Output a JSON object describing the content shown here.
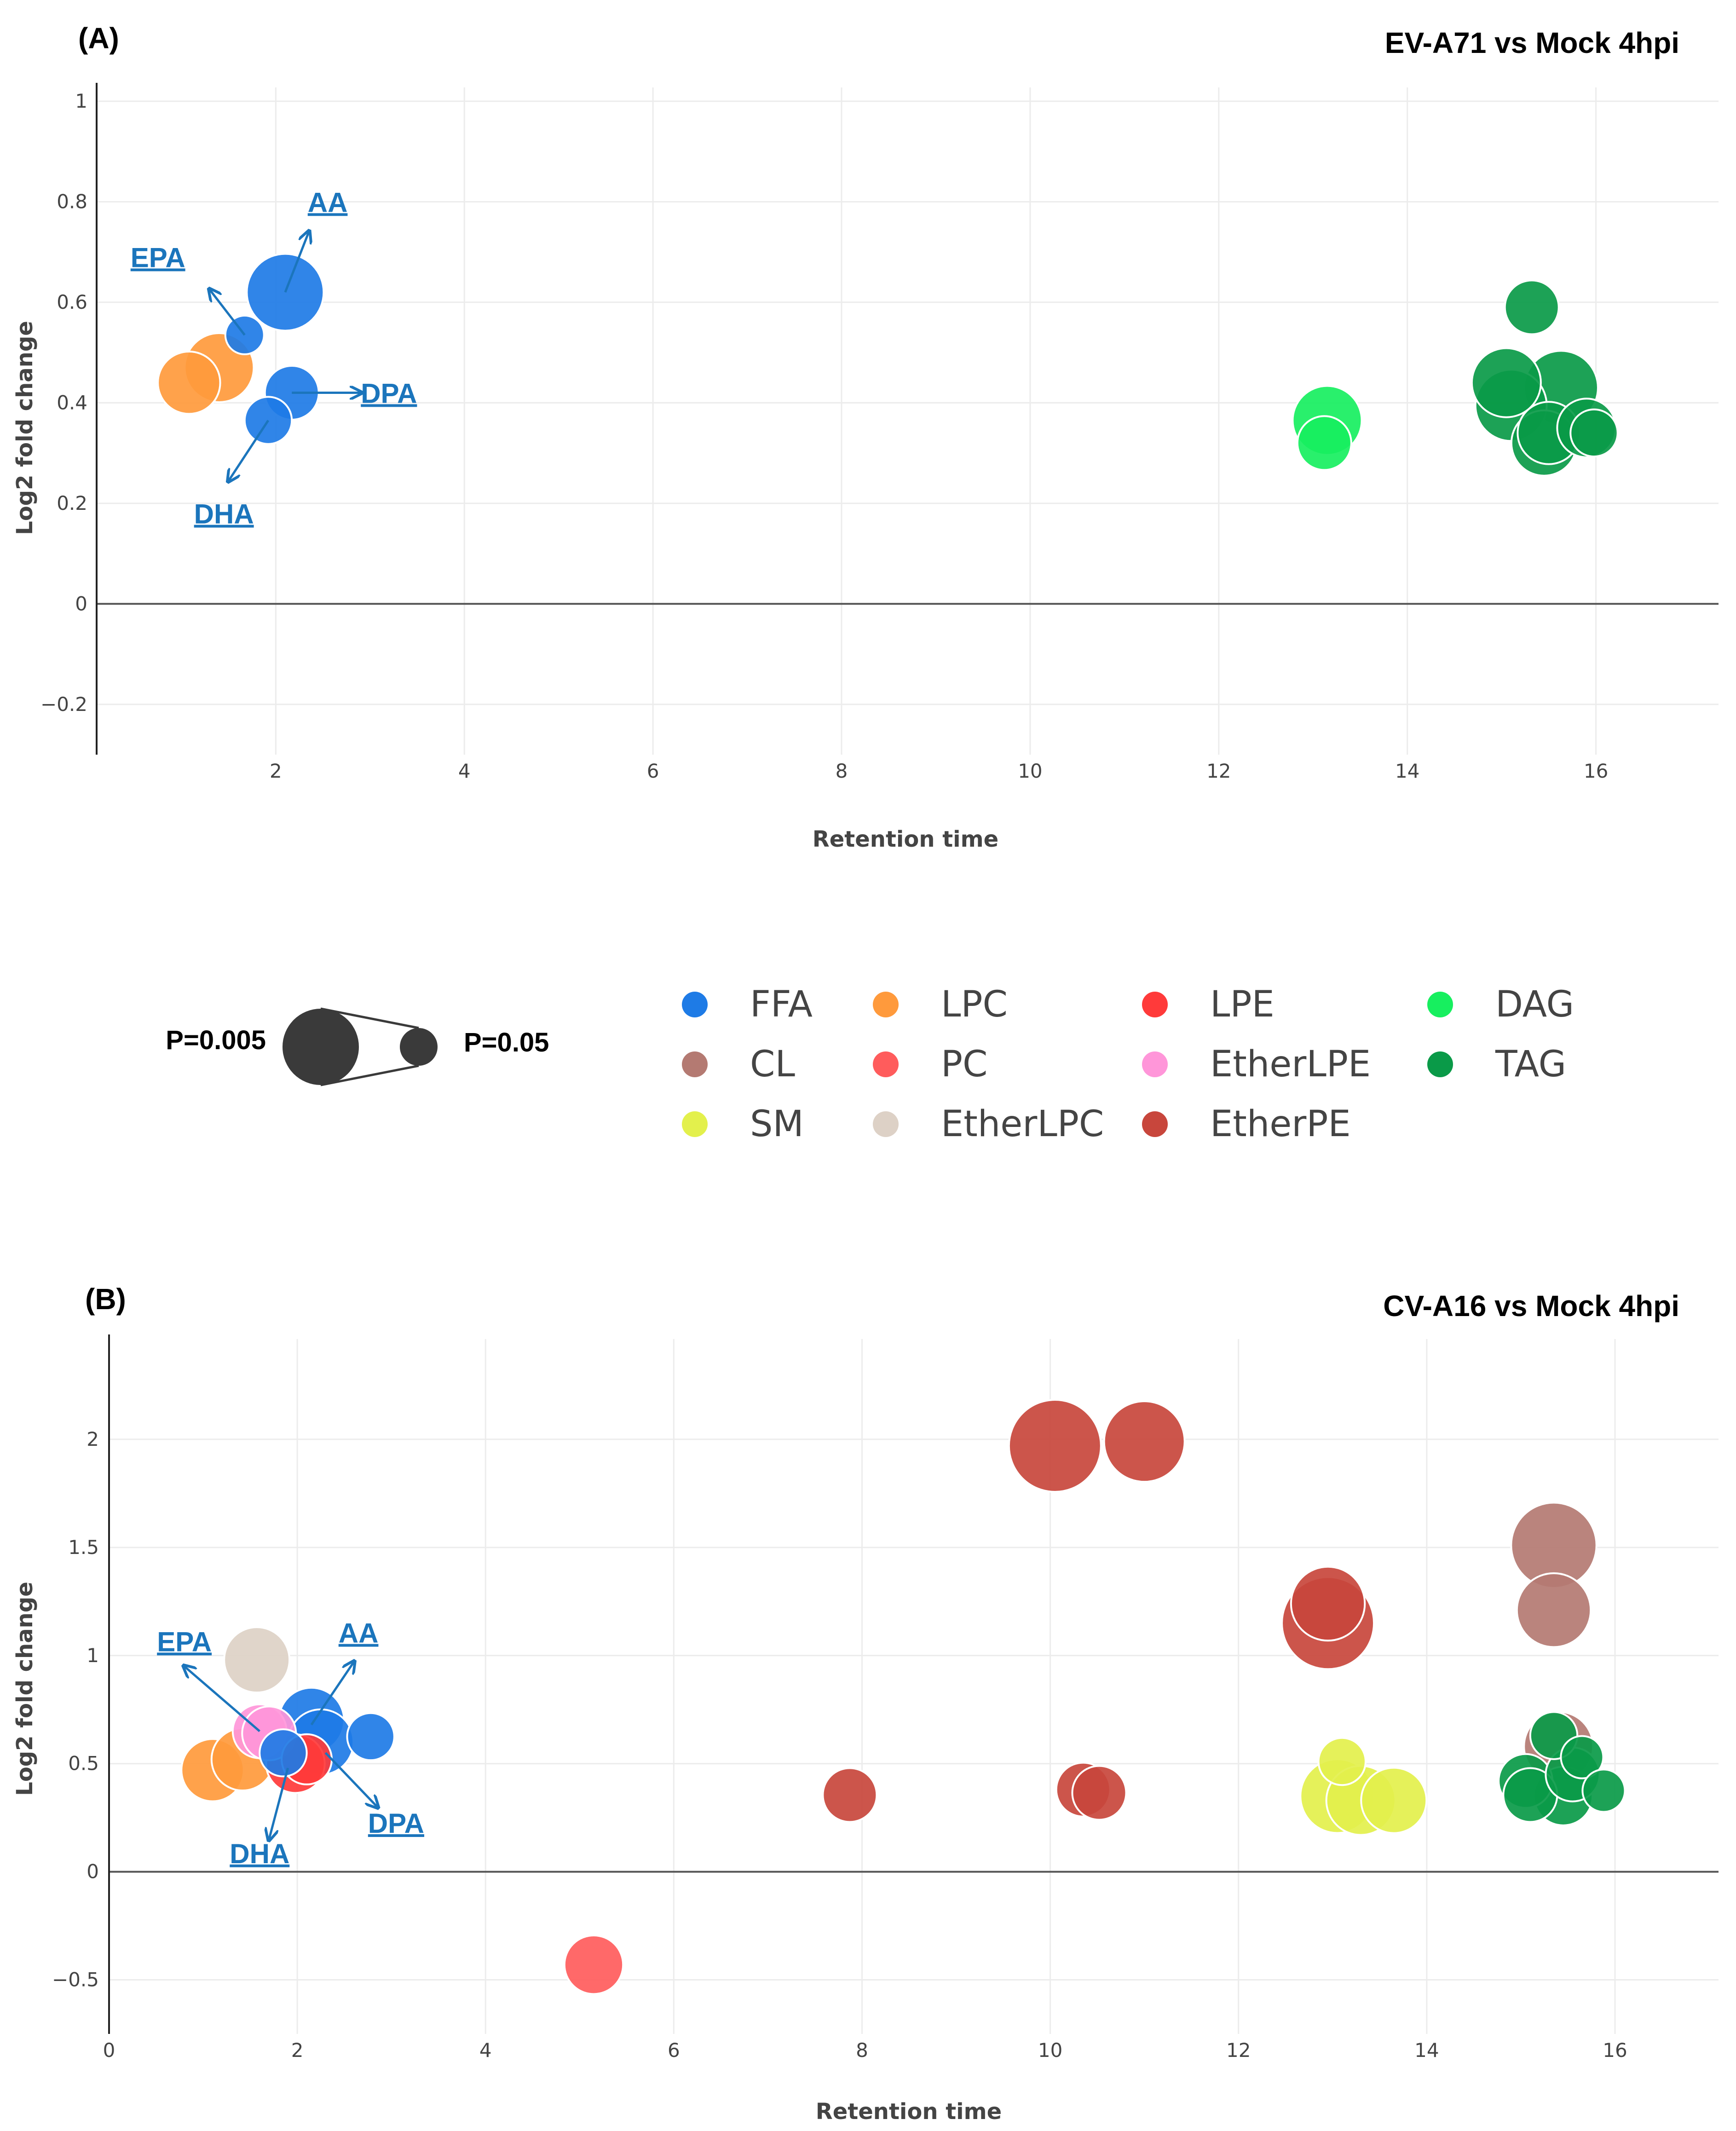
{
  "legend": {
    "entries": [
      {
        "label": "FFA",
        "color": "#1e7be6"
      },
      {
        "label": "LPC",
        "color": "#ff9a3c"
      },
      {
        "label": "LPE",
        "color": "#ff3a3a"
      },
      {
        "label": "DAG",
        "color": "#17ef5f"
      },
      {
        "label": "CL",
        "color": "#b47a72"
      },
      {
        "label": "PC",
        "color": "#ff5c5c"
      },
      {
        "label": "EtherLPE",
        "color": "#ff96d9"
      },
      {
        "label": "TAG",
        "color": "#0a9a48"
      },
      {
        "label": "SM",
        "color": "#e3f04c"
      },
      {
        "label": "EtherLPC",
        "color": "#ddd1c6"
      },
      {
        "label": "EtherPE",
        "color": "#c8463c"
      }
    ],
    "size_legend": {
      "left_label": "P=0.005",
      "right_label": "P=0.05"
    }
  },
  "chart_data": [
    {
      "type": "scatter",
      "panel_label": "(A)",
      "title": "EV-A71 vs Mock 4hpi",
      "xlabel": "Retention time",
      "ylabel": "Log2 fold change",
      "xlim": [
        0.1,
        17.3
      ],
      "ylim": [
        -0.3,
        1.0
      ],
      "xticks": [
        2,
        4,
        6,
        8,
        10,
        12,
        14,
        16
      ],
      "yticks": [
        -0.2,
        0,
        0.2,
        0.4,
        0.6,
        0.8,
        1
      ],
      "ytick_labels": [
        "−0.2",
        "0",
        "0.2",
        "0.4",
        "0.6",
        "0.8",
        "1"
      ],
      "grid": true,
      "annotations": [
        {
          "text": "AA",
          "x": 2.55,
          "y": 0.78
        },
        {
          "text": "EPA",
          "x": 0.75,
          "y": 0.67
        },
        {
          "text": "DPA",
          "x": 3.2,
          "y": 0.4
        },
        {
          "text": "DHA",
          "x": 1.45,
          "y": 0.16
        }
      ],
      "points": [
        {
          "class": "FFA",
          "x": 2.1,
          "y": 0.62,
          "p": 0.005
        },
        {
          "class": "FFA",
          "x": 1.67,
          "y": 0.535,
          "p": 0.05
        },
        {
          "class": "FFA",
          "x": 2.17,
          "y": 0.42,
          "p": 0.02
        },
        {
          "class": "FFA",
          "x": 1.92,
          "y": 0.365,
          "p": 0.03
        },
        {
          "class": "LPC",
          "x": 1.4,
          "y": 0.47,
          "p": 0.008
        },
        {
          "class": "LPC",
          "x": 1.08,
          "y": 0.44,
          "p": 0.012
        },
        {
          "class": "DAG",
          "x": 13.15,
          "y": 0.365,
          "p": 0.008
        },
        {
          "class": "DAG",
          "x": 13.12,
          "y": 0.32,
          "p": 0.02
        },
        {
          "class": "TAG",
          "x": 15.32,
          "y": 0.59,
          "p": 0.02
        },
        {
          "class": "TAG",
          "x": 15.05,
          "y": 0.44,
          "p": 0.008
        },
        {
          "class": "TAG",
          "x": 15.1,
          "y": 0.395,
          "p": 0.007
        },
        {
          "class": "TAG",
          "x": 15.63,
          "y": 0.43,
          "p": 0.006
        },
        {
          "class": "TAG",
          "x": 15.45,
          "y": 0.32,
          "p": 0.01
        },
        {
          "class": "TAG",
          "x": 15.5,
          "y": 0.34,
          "p": 0.012
        },
        {
          "class": "TAG",
          "x": 15.9,
          "y": 0.35,
          "p": 0.015
        },
        {
          "class": "TAG",
          "x": 15.98,
          "y": 0.34,
          "p": 0.03
        }
      ]
    },
    {
      "type": "scatter",
      "panel_label": "(B)",
      "title": "CV-A16 vs Mock 4hpi",
      "xlabel": "Retention time",
      "ylabel": "Log2 fold change",
      "xlim": [
        0,
        17.1
      ],
      "ylim": [
        -0.75,
        2.4
      ],
      "xticks": [
        0,
        2,
        4,
        6,
        8,
        10,
        12,
        14,
        16
      ],
      "yticks": [
        -0.5,
        0,
        0.5,
        1,
        1.5,
        2
      ],
      "ytick_labels": [
        "−0.5",
        "0",
        "0.5",
        "1",
        "1.5",
        "2"
      ],
      "grid": true,
      "annotations": [
        {
          "text": "AA",
          "x": 2.65,
          "y": 1.06
        },
        {
          "text": "EPA",
          "x": 0.8,
          "y": 1.02
        },
        {
          "text": "DPA",
          "x": 3.05,
          "y": 0.18
        },
        {
          "text": "DHA",
          "x": 1.6,
          "y": 0.04
        }
      ],
      "points": [
        {
          "class": "EtherPE",
          "x": 10.05,
          "y": 1.97,
          "p": 0.002
        },
        {
          "class": "EtherPE",
          "x": 11.0,
          "y": 1.99,
          "p": 0.004
        },
        {
          "class": "EtherPE",
          "x": 12.95,
          "y": 1.24,
          "p": 0.006
        },
        {
          "class": "EtherPE",
          "x": 12.95,
          "y": 1.15,
          "p": 0.002
        },
        {
          "class": "EtherPE",
          "x": 7.87,
          "y": 0.355,
          "p": 0.02
        },
        {
          "class": "EtherPE",
          "x": 10.35,
          "y": 0.38,
          "p": 0.02
        },
        {
          "class": "EtherPE",
          "x": 10.52,
          "y": 0.365,
          "p": 0.02
        },
        {
          "class": "CL",
          "x": 15.35,
          "y": 1.51,
          "p": 0.003
        },
        {
          "class": "CL",
          "x": 15.35,
          "y": 1.21,
          "p": 0.006
        },
        {
          "class": "CL",
          "x": 15.4,
          "y": 0.58,
          "p": 0.008
        },
        {
          "class": "PC",
          "x": 5.15,
          "y": -0.43,
          "p": 0.015
        },
        {
          "class": "EtherLPC",
          "x": 1.57,
          "y": 0.98,
          "p": 0.01
        },
        {
          "class": "FFA",
          "x": 2.15,
          "y": 0.7,
          "p": 0.01
        },
        {
          "class": "FFA",
          "x": 2.25,
          "y": 0.6,
          "p": 0.01
        },
        {
          "class": "FFA",
          "x": 2.78,
          "y": 0.625,
          "p": 0.03
        },
        {
          "class": "FFA",
          "x": 1.85,
          "y": 0.55,
          "p": 0.03
        },
        {
          "class": "EtherLPE",
          "x": 1.6,
          "y": 0.65,
          "p": 0.02
        },
        {
          "class": "EtherLPE",
          "x": 1.7,
          "y": 0.64,
          "p": 0.02
        },
        {
          "class": "LPE",
          "x": 1.98,
          "y": 0.5,
          "p": 0.015
        },
        {
          "class": "LPE",
          "x": 2.1,
          "y": 0.52,
          "p": 0.025
        },
        {
          "class": "LPC",
          "x": 1.1,
          "y": 0.47,
          "p": 0.012
        },
        {
          "class": "LPC",
          "x": 1.42,
          "y": 0.52,
          "p": 0.012
        },
        {
          "class": "SM",
          "x": 13.05,
          "y": 0.35,
          "p": 0.006
        },
        {
          "class": "SM",
          "x": 13.3,
          "y": 0.33,
          "p": 0.008
        },
        {
          "class": "SM",
          "x": 13.65,
          "y": 0.33,
          "p": 0.01
        },
        {
          "class": "SM",
          "x": 13.1,
          "y": 0.51,
          "p": 0.03
        },
        {
          "class": "TAG",
          "x": 15.35,
          "y": 0.63,
          "p": 0.03
        },
        {
          "class": "TAG",
          "x": 15.05,
          "y": 0.42,
          "p": 0.02
        },
        {
          "class": "TAG",
          "x": 15.1,
          "y": 0.355,
          "p": 0.02
        },
        {
          "class": "TAG",
          "x": 15.45,
          "y": 0.35,
          "p": 0.015
        },
        {
          "class": "TAG",
          "x": 15.55,
          "y": 0.45,
          "p": 0.02
        },
        {
          "class": "TAG",
          "x": 15.65,
          "y": 0.53,
          "p": 0.04
        },
        {
          "class": "TAG",
          "x": 15.88,
          "y": 0.375,
          "p": 0.04
        }
      ]
    }
  ]
}
